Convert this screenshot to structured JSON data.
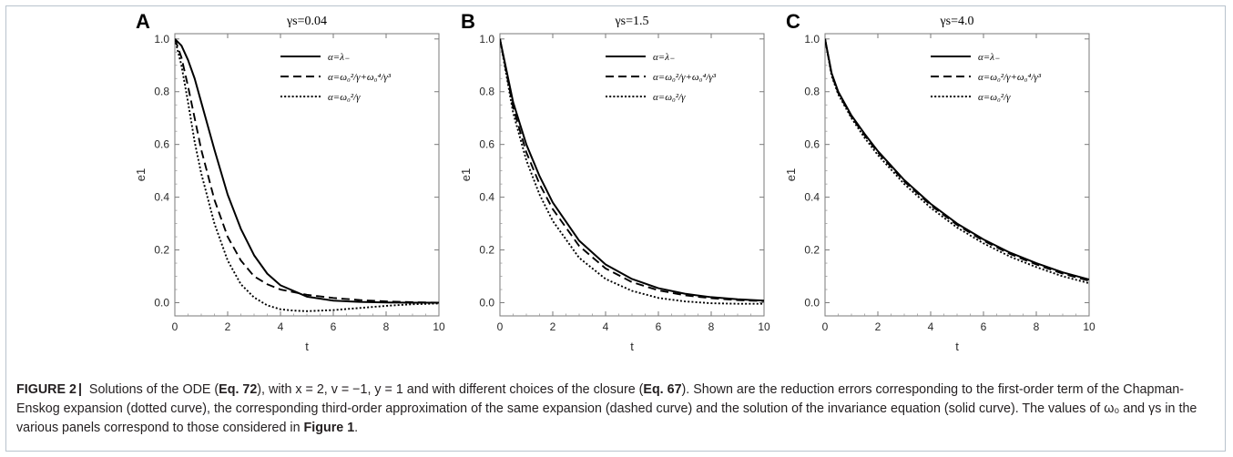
{
  "chart_data": [
    {
      "type": "line",
      "panel": "A",
      "title": "γs=0.04",
      "xlabel": "t",
      "ylabel": "e1",
      "xlim": [
        0,
        10
      ],
      "ylim": [
        -0.05,
        1.02
      ],
      "xticks": [
        0,
        2,
        4,
        6,
        8,
        10
      ],
      "yticks": [
        0.0,
        0.2,
        0.4,
        0.6,
        0.8,
        1.0
      ],
      "legend_position": "top-right",
      "series": [
        {
          "name": "α=λ₋",
          "style": "solid",
          "x": [
            0,
            0.25,
            0.5,
            0.75,
            1,
            1.5,
            2,
            2.5,
            3,
            3.5,
            4,
            5,
            6,
            7,
            8,
            9,
            10
          ],
          "y": [
            1.0,
            0.975,
            0.92,
            0.85,
            0.76,
            0.58,
            0.41,
            0.28,
            0.18,
            0.11,
            0.066,
            0.023,
            0.008,
            0.003,
            0.001,
            0.0,
            0.0
          ]
        },
        {
          "name": "α=ω₀²/γ+ω₀⁴/γ³",
          "style": "dashed",
          "x": [
            0,
            0.25,
            0.5,
            0.75,
            1,
            1.5,
            2,
            2.5,
            3,
            3.5,
            4,
            5,
            6,
            7,
            8,
            9,
            10
          ],
          "y": [
            1.0,
            0.93,
            0.82,
            0.7,
            0.58,
            0.39,
            0.25,
            0.16,
            0.1,
            0.07,
            0.05,
            0.03,
            0.018,
            0.01,
            0.005,
            0.002,
            0.0
          ]
        },
        {
          "name": "α=ω₀²/γ",
          "style": "dotted",
          "x": [
            0,
            0.25,
            0.5,
            0.75,
            1,
            1.5,
            2,
            2.5,
            3,
            3.5,
            4,
            4.5,
            5,
            6,
            7,
            8,
            9,
            10
          ],
          "y": [
            1.0,
            0.9,
            0.76,
            0.61,
            0.49,
            0.3,
            0.16,
            0.07,
            0.02,
            -0.01,
            -0.025,
            -0.03,
            -0.032,
            -0.028,
            -0.02,
            -0.012,
            -0.006,
            -0.003
          ]
        }
      ]
    },
    {
      "type": "line",
      "panel": "B",
      "title": "γs=1.5",
      "xlabel": "t",
      "ylabel": "e1",
      "xlim": [
        0,
        10
      ],
      "ylim": [
        -0.05,
        1.02
      ],
      "xticks": [
        0,
        2,
        4,
        6,
        8,
        10
      ],
      "yticks": [
        0.0,
        0.2,
        0.4,
        0.6,
        0.8,
        1.0
      ],
      "legend_position": "top-right",
      "series": [
        {
          "name": "α=λ₋",
          "style": "solid",
          "x": [
            0,
            0.5,
            1,
            1.5,
            2,
            3,
            4,
            5,
            6,
            7,
            8,
            9,
            10
          ],
          "y": [
            1.0,
            0.76,
            0.6,
            0.48,
            0.38,
            0.235,
            0.145,
            0.09,
            0.055,
            0.034,
            0.021,
            0.013,
            0.008
          ]
        },
        {
          "name": "α=ω₀²/γ+ω₀⁴/γ³",
          "style": "dashed",
          "x": [
            0,
            0.5,
            1,
            1.5,
            2,
            3,
            4,
            5,
            6,
            7,
            8,
            9,
            10
          ],
          "y": [
            1.0,
            0.74,
            0.57,
            0.45,
            0.355,
            0.215,
            0.13,
            0.078,
            0.047,
            0.028,
            0.017,
            0.01,
            0.006
          ]
        },
        {
          "name": "α=ω₀²/γ",
          "style": "dotted",
          "x": [
            0,
            0.5,
            1,
            1.5,
            2,
            3,
            4,
            5,
            6,
            7,
            8,
            9,
            10
          ],
          "y": [
            1.0,
            0.72,
            0.54,
            0.41,
            0.31,
            0.17,
            0.09,
            0.045,
            0.018,
            0.005,
            -0.002,
            -0.004,
            -0.004
          ]
        }
      ]
    },
    {
      "type": "line",
      "panel": "C",
      "title": "γs=4.0",
      "xlabel": "t",
      "ylabel": "e1",
      "xlim": [
        0,
        10
      ],
      "ylim": [
        -0.05,
        1.02
      ],
      "xticks": [
        0,
        2,
        4,
        6,
        8,
        10
      ],
      "yticks": [
        0.0,
        0.2,
        0.4,
        0.6,
        0.8,
        1.0
      ],
      "legend_position": "top-right",
      "series": [
        {
          "name": "α=λ₋",
          "style": "solid",
          "x": [
            0,
            0.25,
            0.5,
            1,
            1.5,
            2,
            3,
            4,
            5,
            6,
            7,
            8,
            9,
            10
          ],
          "y": [
            1.0,
            0.87,
            0.8,
            0.71,
            0.64,
            0.575,
            0.465,
            0.375,
            0.3,
            0.24,
            0.19,
            0.15,
            0.115,
            0.088
          ]
        },
        {
          "name": "α=ω₀²/γ+ω₀⁴/γ³",
          "style": "dashed",
          "x": [
            0,
            0.25,
            0.5,
            1,
            1.5,
            2,
            3,
            4,
            5,
            6,
            7,
            8,
            9,
            10
          ],
          "y": [
            1.0,
            0.865,
            0.795,
            0.705,
            0.635,
            0.57,
            0.46,
            0.37,
            0.295,
            0.235,
            0.185,
            0.145,
            0.11,
            0.083
          ]
        },
        {
          "name": "α=ω₀²/γ",
          "style": "dotted",
          "x": [
            0,
            0.25,
            0.5,
            1,
            1.5,
            2,
            3,
            4,
            5,
            6,
            7,
            8,
            9,
            10
          ],
          "y": [
            1.0,
            0.86,
            0.79,
            0.7,
            0.625,
            0.56,
            0.45,
            0.36,
            0.285,
            0.225,
            0.175,
            0.135,
            0.1,
            0.074
          ]
        }
      ]
    }
  ],
  "caption": {
    "label": "FIGURE 2",
    "separator": "|",
    "parts": [
      {
        "text": " Solutions of the ODE (",
        "bold": false
      },
      {
        "text": "Eq. 72",
        "bold": true
      },
      {
        "text": "), with x = 2, v = −1, y = 1 and with different choices of the closure (",
        "bold": false
      },
      {
        "text": "Eq. 67",
        "bold": true
      },
      {
        "text": "). Shown are the reduction errors corresponding to the first-order term of the Chapman-Enskog expansion (dotted curve), the corresponding third-order approximation of the same expansion (dashed curve) and the solution of the invariance equation (solid curve). The values of ω₀ and γs in the various panels correspond to those considered in ",
        "bold": false
      },
      {
        "text": "Figure 1",
        "bold": true
      },
      {
        "text": ".",
        "bold": false
      }
    ]
  }
}
